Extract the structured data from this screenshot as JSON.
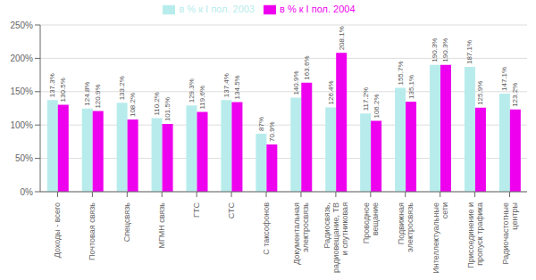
{
  "chart_data": {
    "type": "bar",
    "categories": [
      "Доходы - всего",
      "Почтовая связь",
      "Спецсвязь",
      "МГМН связь",
      "ГТС",
      "СТС",
      "С таксофонов",
      "Документальная\nэлектросвязь",
      "Радиосвязь,\nрадиовещание, ТВ\nи спутниковая",
      "Проводное\nвещание",
      "Подвижная\nэлектросвязь",
      "Интеллектуальные\nсети",
      "Присоединение и\nпропуск трафика",
      "Радиочастотные\nцентры"
    ],
    "series": [
      {
        "name": "в % к I пол. 2003",
        "color": "#b8ecec",
        "values": [
          137.3,
          124.8,
          133.2,
          110.2,
          129.3,
          137.4,
          87,
          140.9,
          126.4,
          117.2,
          155.7,
          190.3,
          187.1,
          147.1
        ],
        "value_labels": [
          "137.3%",
          "124.8%",
          "133.2%",
          "110.2%",
          "129.3%",
          "137.4%",
          "87%",
          "140.9%",
          "126.4%",
          "117.2%",
          "155.7%",
          "190.3%",
          "187.1%",
          "147.1%"
        ]
      },
      {
        "name": "в % к I пол. 2004",
        "color": "#ee00ee",
        "values": [
          130.5,
          120.9,
          108.2,
          101.5,
          119.6,
          134.5,
          70.9,
          163.6,
          208.1,
          106.2,
          135.1,
          190.3,
          125.9,
          123.2
        ],
        "value_labels": [
          "130.5%",
          "120.9%",
          "108.2%",
          "101.5%",
          "119.6%",
          "134.5%",
          "70.9%",
          "163.6%",
          "208.1%",
          "106.2%",
          "135.1%",
          "190.3%",
          "125.9%",
          "123.2%"
        ]
      }
    ],
    "ylim": [
      0,
      250
    ],
    "yticks": [
      {
        "value": 0,
        "label": "0%"
      },
      {
        "value": 50,
        "label": "50%"
      },
      {
        "value": 100,
        "label": "100%"
      },
      {
        "value": 150,
        "label": "150%"
      },
      {
        "value": 200,
        "label": "200%"
      },
      {
        "value": 250,
        "label": "250%"
      }
    ],
    "grid": true,
    "legend": "top",
    "data_labels": true
  }
}
